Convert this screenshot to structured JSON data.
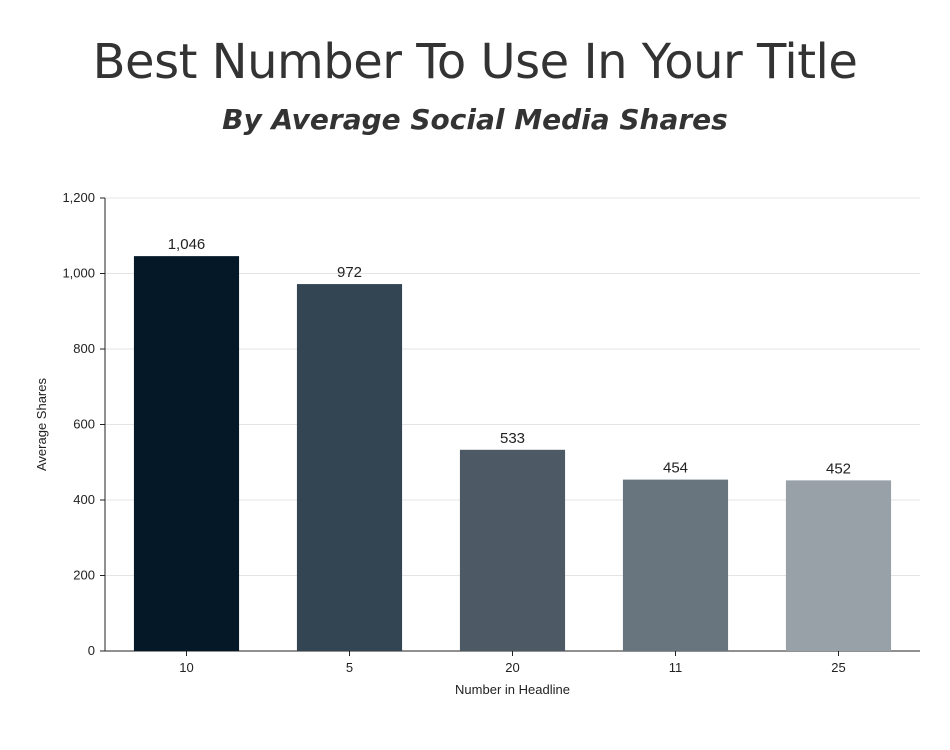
{
  "header": {
    "title": "Best Number To Use In Your Title",
    "subtitle": "By Average Social Media Shares"
  },
  "chart_data": {
    "type": "bar",
    "title": "Best Number To Use In Your Title",
    "subtitle": "By Average Social Media Shares",
    "xlabel": "Number in Headline",
    "ylabel": "Average Shares",
    "categories": [
      "10",
      "5",
      "20",
      "11",
      "25"
    ],
    "values": [
      1046,
      972,
      533,
      454,
      452
    ],
    "value_labels": [
      "1,046",
      "972",
      "533",
      "454",
      "452"
    ],
    "bar_colors": [
      "#041828",
      "#334452",
      "#4d5a66",
      "#68757e",
      "#99a1a8"
    ],
    "ylim": [
      0,
      1200
    ],
    "yticks": [
      0,
      200,
      400,
      600,
      800,
      1000,
      1200
    ],
    "ytick_labels": [
      "0",
      "200",
      "400",
      "600",
      "800",
      "1,000",
      "1,200"
    ],
    "grid": true,
    "legend": "none"
  }
}
